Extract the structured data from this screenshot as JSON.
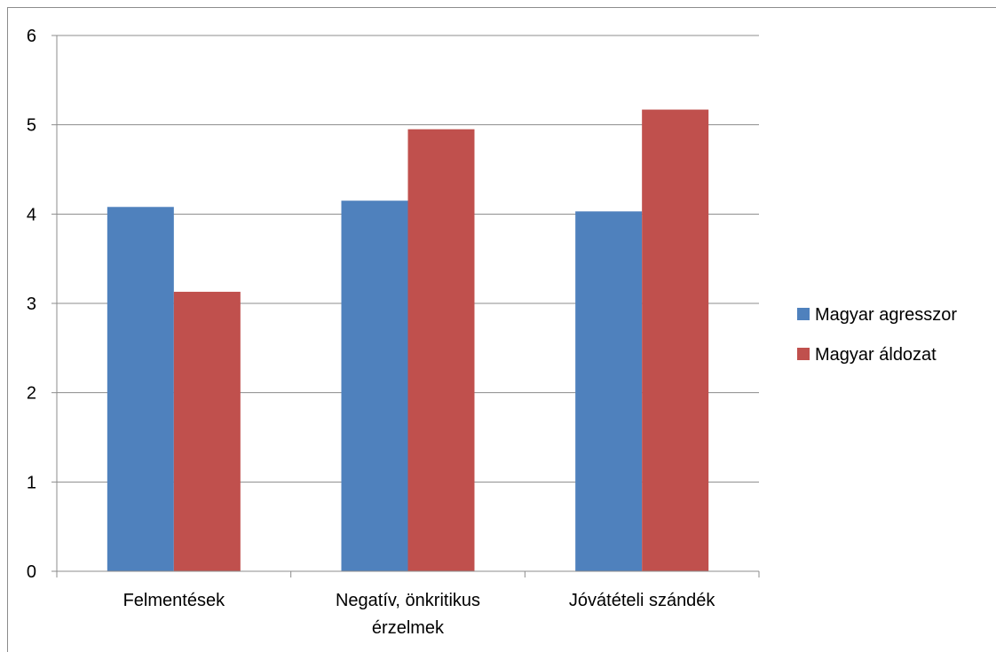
{
  "chart_data": {
    "type": "bar",
    "categories": [
      [
        "Felmentések"
      ],
      [
        "Negatív, önkritikus",
        "érzelmek"
      ],
      [
        "Jóvátételi szándék"
      ]
    ],
    "series": [
      {
        "name": "Magyar agresszor",
        "color": "#4F81BD",
        "values": [
          4.08,
          4.15,
          4.03
        ]
      },
      {
        "name": "Magyar áldozat",
        "color": "#C0504D",
        "values": [
          3.13,
          4.95,
          5.17
        ]
      }
    ],
    "ylim": [
      0,
      6
    ],
    "yticks": [
      0,
      1,
      2,
      3,
      4,
      5,
      6
    ],
    "grid": true,
    "legend_position": "right"
  }
}
